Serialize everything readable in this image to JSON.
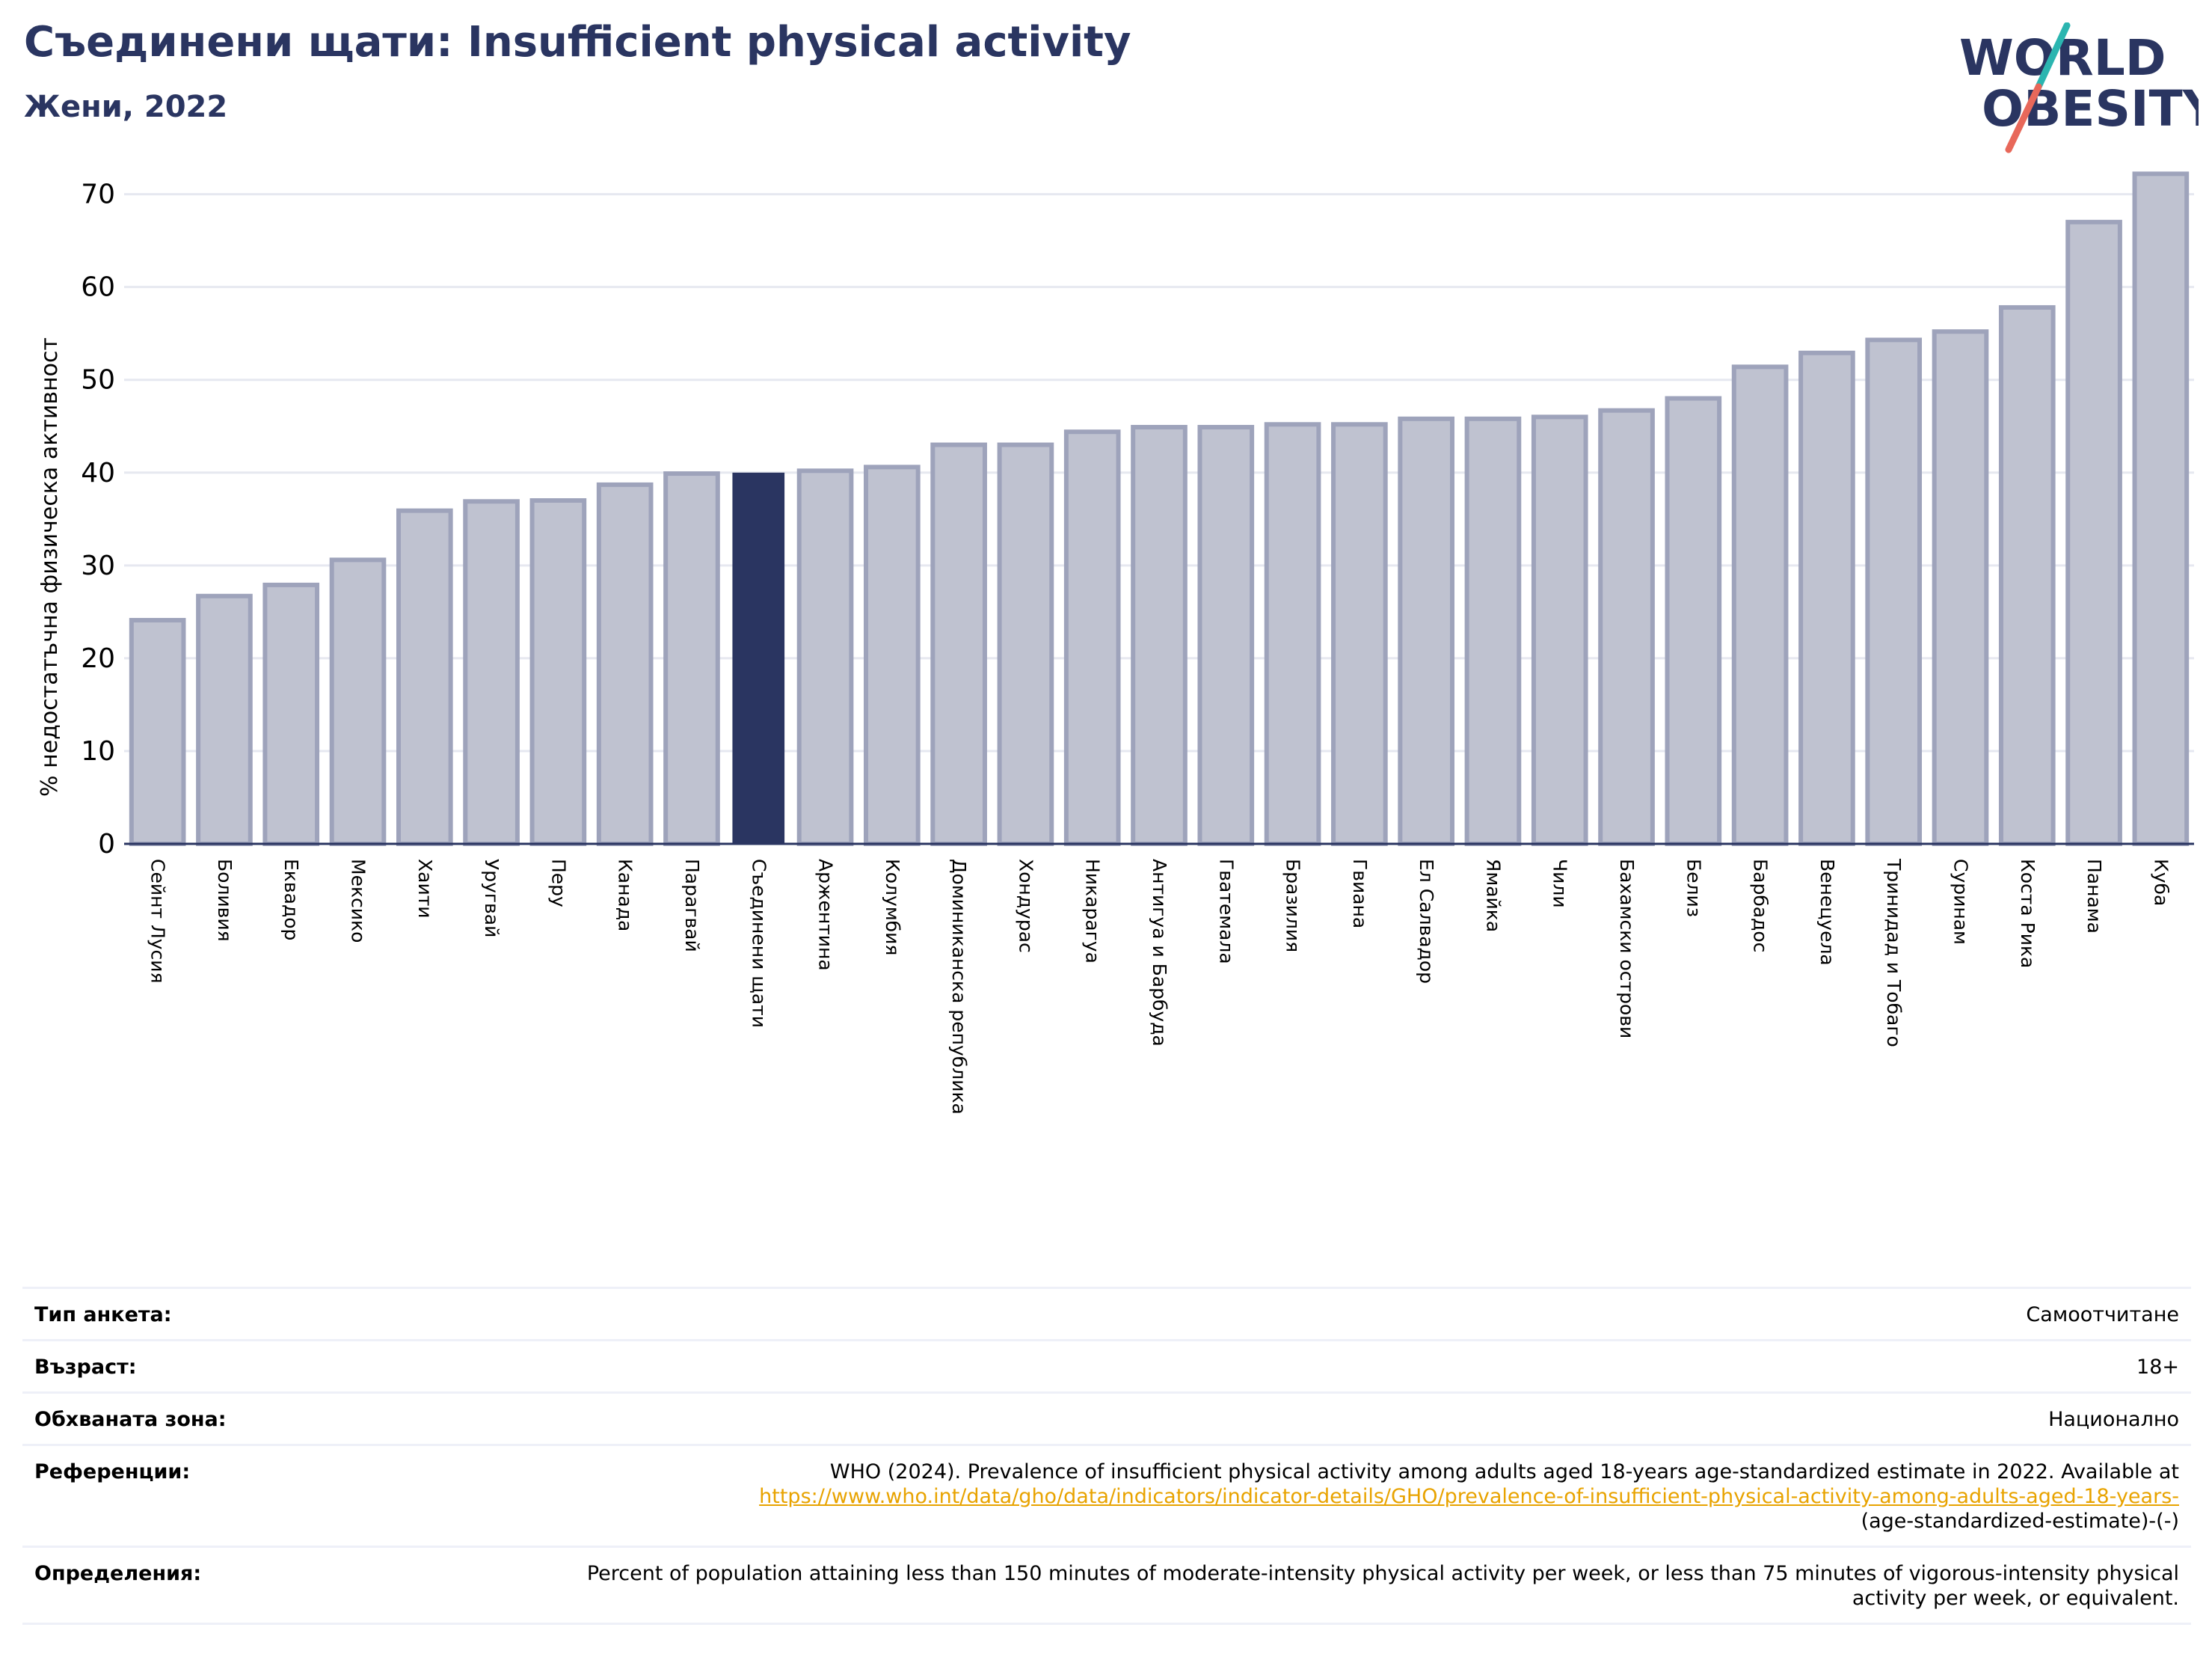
{
  "header": {
    "title": "Съединени щати: Insufficient physical activity",
    "subtitle": "Жени, 2022"
  },
  "logo": {
    "line1": "WORLD",
    "line2": "OBESITY",
    "text_color": "#2a3561",
    "slash_top_color": "#2bb5b0",
    "slash_bottom_color": "#e8685a"
  },
  "colors": {
    "bar_fill": "#bfc2d0",
    "bar_stroke": "#9ea3bb",
    "highlight_fill": "#2a3561",
    "grid": "#e6e8f0",
    "axis": "#2a3561"
  },
  "chart_data": {
    "type": "bar",
    "ylabel": "% недостатъчна физическа активност",
    "ylim": [
      0,
      74
    ],
    "yticks": [
      0,
      10,
      20,
      30,
      40,
      50,
      60,
      70
    ],
    "grid": true,
    "highlight": "Съединени щати",
    "categories": [
      "Сейнт Лусия",
      "Боливия",
      "Еквадор",
      "Мексико",
      "Хаити",
      "Уругвай",
      "Перу",
      "Канада",
      "Парагвай",
      "Съединени щати",
      "Аржентина",
      "Колумбия",
      "Доминиканска република",
      "Хондурас",
      "Никарагуа",
      "Антигуа и Барбуда",
      "Гватемала",
      "Бразилия",
      "Гвиана",
      "Ел Салвадор",
      "Ямайка",
      "Чили",
      "Бахамски острови",
      "Белиз",
      "Барбадос",
      "Венецуела",
      "Тринидад и Тобаго",
      "Суринам",
      "Коста Рика",
      "Панама",
      "Куба"
    ],
    "values": [
      24.1,
      26.7,
      27.9,
      30.6,
      35.9,
      36.9,
      37.0,
      38.7,
      39.9,
      40.0,
      40.2,
      40.6,
      43.0,
      43.0,
      44.4,
      44.9,
      44.9,
      45.2,
      45.2,
      45.8,
      45.8,
      46.0,
      46.7,
      48.0,
      51.4,
      52.9,
      54.3,
      55.2,
      57.8,
      67.0,
      72.2
    ]
  },
  "meta": {
    "survey_label": "Тип анкета:",
    "survey_value": "Самоотчитане",
    "age_label": "Възраст:",
    "age_value": "18+",
    "area_label": "Обхваната зона:",
    "area_value": "Национално",
    "ref_label": "Референции:",
    "ref_text": "WHO (2024). Prevalence of insufficient physical activity among adults aged 18-years age-standardized estimate in 2022. Available at",
    "ref_link": "https://www.who.int/data/gho/data/indicators/indicator-details/GHO/prevalence-of-insufficient-physical-activity-among-adults-aged-18-years-",
    "ref_tail": "(age-standardized-estimate)-(-)",
    "def_label": "Определения:",
    "def_value": "Percent of population attaining less than 150 minutes of moderate-intensity physical activity per week, or less than 75 minutes of vigorous-intensity physical activity per week, or equivalent."
  }
}
